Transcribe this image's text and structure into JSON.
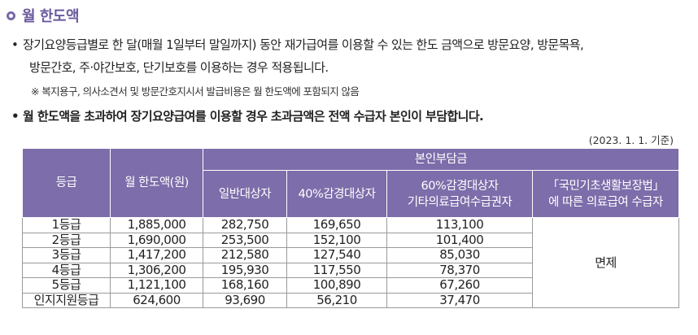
{
  "heading": {
    "title": "월 한도액"
  },
  "bullets": [
    {
      "marker": "•",
      "line1": "장기요양등급별로 한 달(매월 1일부터 말일까지) 동안 재가급여를 이용할 수 있는 한도 금액으로 방문요양, 방문목욕,",
      "line2": "방문간호, 주·야간보호, 단기보호를 이용하는 경우 적용됩니다."
    },
    {
      "marker": "•",
      "line1": "월 한도액을 초과하여 장기요양급여를 이용할 경우 초과금액은 전액 수급자 본인이 부담합니다."
    }
  ],
  "note": "※ 복지용구, 의사소견서 및 방문간호지시서 발급비용은 월 한도액에 포함되지 않음",
  "date_note": "(2023. 1. 1. 기준)",
  "table": {
    "headers": {
      "grade": "등급",
      "limit": "월 한도액(원)",
      "copay_group": "본인부담금",
      "general": "일반대상자",
      "reduced40": "40%감경대상자",
      "reduced60_line1": "60%감경대상자",
      "reduced60_line2": "기타의료급여수급권자",
      "basic_line1": "「국민기초생활보장법」",
      "basic_line2": "에 따른 의료급여 수급자"
    },
    "rows": [
      {
        "grade": "1등급",
        "limit": "1,885,000",
        "general": "282,750",
        "reduced40": "169,650",
        "reduced60": "113,100"
      },
      {
        "grade": "2등급",
        "limit": "1,690,000",
        "general": "253,500",
        "reduced40": "152,100",
        "reduced60": "101,400"
      },
      {
        "grade": "3등급",
        "limit": "1,417,200",
        "general": "212,580",
        "reduced40": "127,540",
        "reduced60": "85,030"
      },
      {
        "grade": "4등급",
        "limit": "1,306,200",
        "general": "195,930",
        "reduced40": "117,550",
        "reduced60": "78,370"
      },
      {
        "grade": "5등급",
        "limit": "1,121,100",
        "general": "168,160",
        "reduced40": "100,890",
        "reduced60": "67,260"
      },
      {
        "grade": "인지지원등급",
        "limit": "624,600",
        "general": "93,690",
        "reduced40": "56,210",
        "reduced60": "37,470"
      }
    ],
    "exempt": "면제"
  }
}
